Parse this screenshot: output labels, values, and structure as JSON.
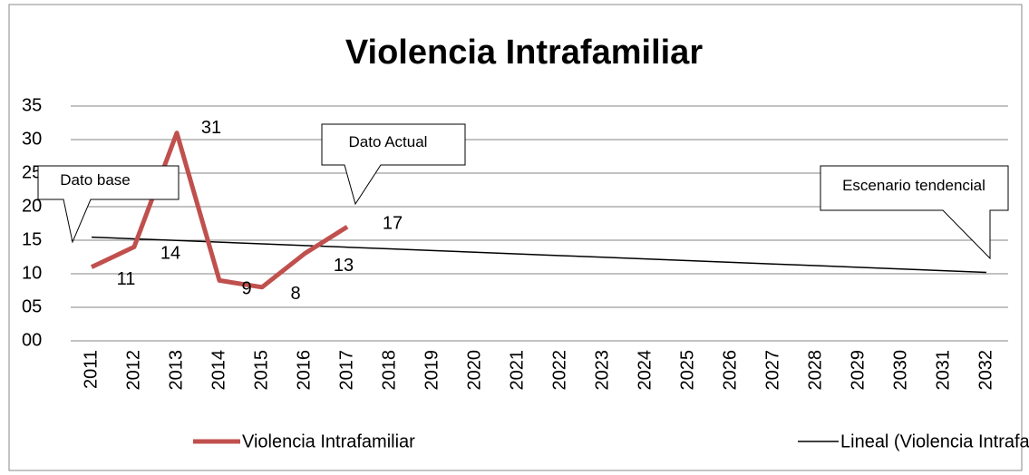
{
  "chart_data": {
    "type": "line",
    "title": "Violencia Intrafamiliar",
    "categories": [
      "2011",
      "2012",
      "2013",
      "2014",
      "2015",
      "2016",
      "2017",
      "2018",
      "2019",
      "2020",
      "2021",
      "2022",
      "2023",
      "2024",
      "2025",
      "2026",
      "2027",
      "2028",
      "2029",
      "2030",
      "2031",
      "2032"
    ],
    "series": [
      {
        "name": "Violencia Intrafamiliar",
        "color": "#c0504d",
        "values": [
          11,
          14,
          31,
          9,
          8,
          13,
          17,
          null,
          null,
          null,
          null,
          null,
          null,
          null,
          null,
          null,
          null,
          null,
          null,
          null,
          null,
          null
        ]
      },
      {
        "name": "Lineal (Violencia Intrafamiliar)",
        "color": "#000000",
        "values": [
          15.46,
          15.21,
          14.96,
          14.71,
          14.46,
          14.21,
          13.96,
          13.71,
          13.46,
          13.21,
          12.96,
          12.71,
          12.46,
          12.21,
          11.96,
          11.71,
          11.46,
          11.21,
          10.96,
          10.71,
          10.46,
          10.21
        ]
      }
    ],
    "ylim": [
      0,
      35
    ],
    "yticks": [
      {
        "value": 0,
        "label": "00"
      },
      {
        "value": 5,
        "label": "05"
      },
      10,
      15,
      20,
      25,
      30,
      35
    ],
    "grid": true,
    "legend": "bottom",
    "annotations": [
      "Dato base",
      "Dato Actual",
      "Escenario tendencial"
    ]
  }
}
